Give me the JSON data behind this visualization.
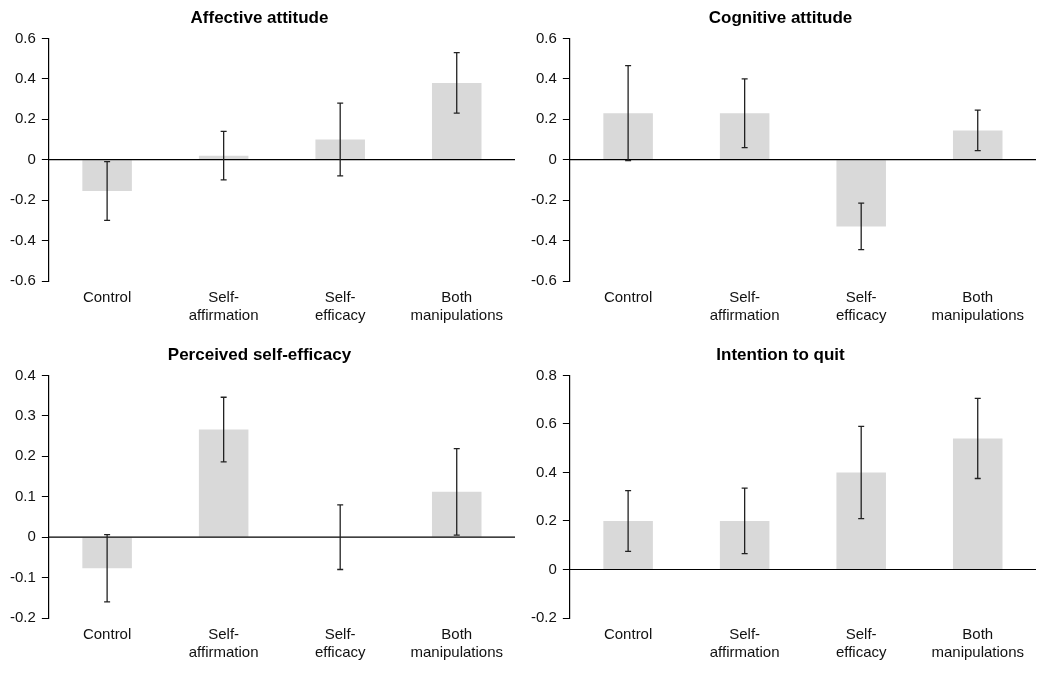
{
  "chart_data": [
    {
      "type": "bar",
      "title": "Affective attitude",
      "categories": [
        "Control",
        "Self-affirmation",
        "Self-efficacy",
        "Both manipulations"
      ],
      "values": [
        -0.155,
        0.02,
        0.1,
        0.38
      ],
      "errors": [
        0.145,
        0.12,
        0.18,
        0.15
      ],
      "color": "#d9d9d9",
      "ylim": [
        -0.6,
        0.6
      ],
      "yticks": [
        -0.6,
        -0.4,
        -0.2,
        0,
        0.2,
        0.4,
        0.6
      ],
      "legend": false
    },
    {
      "type": "bar",
      "title": "Cognitive attitude",
      "categories": [
        "Control",
        "Self-affirmation",
        "Self-efficacy",
        "Both manipulations"
      ],
      "values": [
        0.23,
        0.23,
        -0.33,
        0.145
      ],
      "errors": [
        0.235,
        0.17,
        0.115,
        0.1
      ],
      "color": "#d9d9d9",
      "ylim": [
        -0.6,
        0.6
      ],
      "yticks": [
        -0.6,
        -0.4,
        -0.2,
        0,
        0.2,
        0.4,
        0.6
      ],
      "legend": false
    },
    {
      "type": "bar",
      "title": "Perceived self-efficacy",
      "categories": [
        "Control",
        "Self-affirmation",
        "Self-efficacy",
        "Both manipulations"
      ],
      "values": [
        -0.077,
        0.266,
        0,
        0.112
      ],
      "errors": [
        0.083,
        0.08,
        0.08,
        0.107
      ],
      "color": "#d9d9d9",
      "ylim": [
        -0.2,
        0.4
      ],
      "yticks": [
        -0.2,
        -0.1,
        0,
        0.1,
        0.2,
        0.3,
        0.4
      ],
      "legend": false
    },
    {
      "type": "bar",
      "title": "Intention to quit",
      "categories": [
        "Control",
        "Self-affirmation",
        "Self-efficacy",
        "Both manipulations"
      ],
      "values": [
        0.2,
        0.2,
        0.4,
        0.54
      ],
      "errors": [
        0.125,
        0.135,
        0.19,
        0.165
      ],
      "color": "#d9d9d9",
      "ylim": [
        -0.2,
        0.8
      ],
      "yticks": [
        -0.2,
        0,
        0.2,
        0.4,
        0.6,
        0.8
      ],
      "legend": false
    }
  ]
}
